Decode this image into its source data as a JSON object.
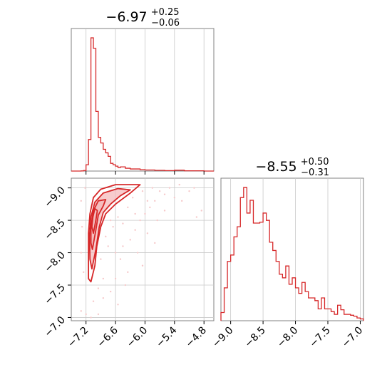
{
  "chart_data": {
    "type": "corner",
    "color": "#d62728",
    "fill_color": "#f4b6b8",
    "scatter_color": "#f6c9ca",
    "grid": true,
    "parameters": [
      {
        "title": {
          "median": "−6.97",
          "upper": "+0.25",
          "lower": "−0.06"
        },
        "range": [
          -7.5,
          -4.6
        ],
        "ticks": [
          -7.2,
          -6.6,
          -6.0,
          -5.4,
          -4.8
        ],
        "tick_labels": [
          "−7.2",
          "−6.6",
          "−6.0",
          "−5.4",
          "−4.8"
        ]
      },
      {
        "title": {
          "median": "−8.55",
          "upper": "+0.50",
          "lower": "−0.31"
        },
        "range": [
          -9.15,
          -6.95
        ],
        "ticks": [
          -9.0,
          -8.5,
          -8.0,
          -7.5,
          -7.0
        ],
        "tick_labels": [
          "−9.0",
          "−8.5",
          "−8.0",
          "−7.5",
          "−7.0"
        ]
      }
    ],
    "hist1": {
      "bin_edges": [
        -7.5,
        -7.45,
        -7.4,
        -7.35,
        -7.3,
        -7.25,
        -7.2,
        -7.15,
        -7.1,
        -7.05,
        -7.0,
        -6.95,
        -6.9,
        -6.85,
        -6.8,
        -6.75,
        -6.7,
        -6.65,
        -6.6,
        -6.55,
        -6.5,
        -6.4,
        -6.3,
        -6.2,
        -6.1,
        -6.0,
        -5.8,
        -5.6,
        -5.4,
        -5.2,
        -5.0,
        -4.8,
        -4.6
      ],
      "counts": [
        0,
        0,
        0,
        0,
        0.2,
        0.8,
        9,
        45,
        190,
        175,
        85,
        48,
        40,
        31,
        26,
        21,
        11,
        9,
        7,
        5,
        6,
        4,
        3,
        3,
        2,
        1.5,
        1,
        0.6,
        1.2,
        0.4,
        0.4,
        0
      ]
    },
    "hist2": {
      "bin_edges": [
        -9.15,
        -9.1,
        -9.05,
        -9.0,
        -8.95,
        -8.9,
        -8.85,
        -8.8,
        -8.75,
        -8.7,
        -8.65,
        -8.6,
        -8.55,
        -8.5,
        -8.45,
        -8.4,
        -8.35,
        -8.3,
        -8.25,
        -8.2,
        -8.15,
        -8.1,
        -8.05,
        -8.0,
        -7.95,
        -7.9,
        -7.85,
        -7.8,
        -7.75,
        -7.7,
        -7.65,
        -7.6,
        -7.55,
        -7.5,
        -7.45,
        -7.4,
        -7.35,
        -7.3,
        -7.25,
        -7.2,
        -7.15,
        -7.1,
        -7.05,
        -7.0,
        -6.95
      ],
      "counts": [
        0.9,
        3.6,
        6.5,
        7.2,
        9.2,
        10.3,
        13.5,
        14.6,
        11.8,
        13.2,
        10.7,
        10.7,
        10.8,
        11.8,
        11,
        8.6,
        7.7,
        6.5,
        5.1,
        4.7,
        6,
        4,
        4.7,
        3.6,
        3,
        4.2,
        3.2,
        2.5,
        2.5,
        2.2,
        1.3,
        2.5,
        1.3,
        1.3,
        1,
        0.7,
        1.7,
        1.2,
        0.7,
        0.7,
        0.6,
        0.5,
        0.3,
        0.2
      ]
    },
    "contours": [
      [
        [
          -7.1,
          -7.55
        ],
        [
          -7.02,
          -7.8
        ],
        [
          -6.98,
          -8.1
        ],
        [
          -6.9,
          -8.4
        ],
        [
          -6.8,
          -8.6
        ],
        [
          -6.6,
          -8.75
        ],
        [
          -6.3,
          -8.92
        ],
        [
          -6.1,
          -9.05
        ],
        [
          -6.6,
          -9.05
        ],
        [
          -6.9,
          -8.98
        ],
        [
          -7.05,
          -8.85
        ],
        [
          -7.12,
          -8.6
        ],
        [
          -7.15,
          -8.3
        ],
        [
          -7.15,
          -7.9
        ],
        [
          -7.15,
          -7.6
        ]
      ],
      [
        [
          -7.08,
          -7.75
        ],
        [
          -7.0,
          -8.05
        ],
        [
          -6.93,
          -8.4
        ],
        [
          -6.85,
          -8.62
        ],
        [
          -6.7,
          -8.75
        ],
        [
          -6.5,
          -8.88
        ],
        [
          -6.3,
          -8.97
        ],
        [
          -6.55,
          -8.99
        ],
        [
          -6.85,
          -8.92
        ],
        [
          -7.02,
          -8.78
        ],
        [
          -7.1,
          -8.55
        ],
        [
          -7.13,
          -8.25
        ],
        [
          -7.12,
          -7.9
        ]
      ],
      [
        [
          -7.07,
          -8.05
        ],
        [
          -7.0,
          -8.35
        ],
        [
          -6.95,
          -8.58
        ],
        [
          -6.85,
          -8.72
        ],
        [
          -6.8,
          -8.82
        ],
        [
          -6.95,
          -8.8
        ],
        [
          -7.05,
          -8.65
        ],
        [
          -7.1,
          -8.4
        ],
        [
          -7.1,
          -8.15
        ]
      ],
      [
        [
          -7.05,
          -8.3
        ],
        [
          -7.0,
          -8.5
        ],
        [
          -6.97,
          -8.65
        ],
        [
          -7.02,
          -8.68
        ],
        [
          -7.06,
          -8.55
        ],
        [
          -7.08,
          -8.4
        ]
      ]
    ],
    "contour_fill_levels": [
      1,
      2
    ],
    "scatter": [
      [
        -7.3,
        -7.1
      ],
      [
        -7.2,
        -7.05
      ],
      [
        -7.1,
        -7.0
      ],
      [
        -6.95,
        -7.05
      ],
      [
        -6.85,
        -7.3
      ],
      [
        -6.7,
        -7.4
      ],
      [
        -6.6,
        -7.6
      ],
      [
        -6.5,
        -7.9
      ],
      [
        -6.45,
        -8.1
      ],
      [
        -6.4,
        -7.5
      ],
      [
        -6.3,
        -8.2
      ],
      [
        -6.2,
        -8.35
      ],
      [
        -6.1,
        -8.5
      ],
      [
        -6.0,
        -8.6
      ],
      [
        -5.9,
        -8.7
      ],
      [
        -5.8,
        -8.8
      ],
      [
        -5.7,
        -8.95
      ],
      [
        -5.6,
        -8.9
      ],
      [
        -5.5,
        -9.0
      ],
      [
        -5.4,
        -8.85
      ],
      [
        -5.3,
        -9.05
      ],
      [
        -5.1,
        -8.95
      ],
      [
        -4.95,
        -8.55
      ],
      [
        -4.85,
        -8.65
      ],
      [
        -7.25,
        -7.7
      ],
      [
        -7.3,
        -8.0
      ],
      [
        -7.28,
        -8.4
      ],
      [
        -7.3,
        -8.8
      ],
      [
        -7.22,
        -9.0
      ],
      [
        -6.75,
        -8.1
      ],
      [
        -6.65,
        -8.4
      ],
      [
        -6.55,
        -8.55
      ],
      [
        -6.35,
        -8.7
      ],
      [
        -6.25,
        -8.85
      ],
      [
        -6.05,
        -8.95
      ],
      [
        -5.85,
        -9.0
      ],
      [
        -6.55,
        -7.2
      ],
      [
        -6.35,
        -7.7
      ],
      [
        -6.15,
        -8.0
      ],
      [
        -5.95,
        -8.3
      ],
      [
        -5.75,
        -8.5
      ],
      [
        -5.6,
        -8.65
      ],
      [
        -5.25,
        -8.8
      ],
      [
        -5.0,
        -9.0
      ],
      [
        -6.9,
        -7.9
      ],
      [
        -6.8,
        -8.25
      ],
      [
        -6.7,
        -8.5
      ],
      [
        -6.85,
        -7.6
      ],
      [
        -7.05,
        -7.25
      ],
      [
        -6.95,
        -7.45
      ],
      [
        -6.6,
        -8.0
      ],
      [
        -6.45,
        -8.45
      ],
      [
        -6.2,
        -8.6
      ],
      [
        -5.95,
        -8.8
      ],
      [
        -6.05,
        -7.8
      ],
      [
        -5.8,
        -8.15
      ]
    ]
  }
}
